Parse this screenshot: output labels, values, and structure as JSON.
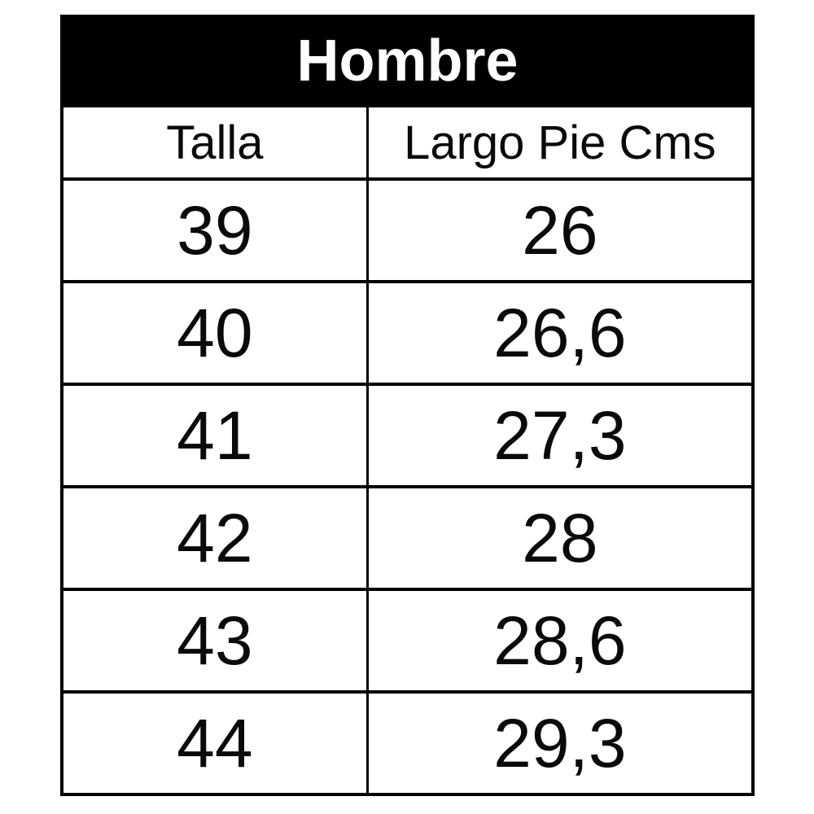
{
  "colors": {
    "title_band_bg": "#000000",
    "title_band_text": "#ffffff",
    "body_bg": "#ffffff",
    "body_text": "#0a0a0a",
    "border": "#000000"
  },
  "chart_data": {
    "type": "table",
    "title": "Hombre",
    "columns": [
      "Talla",
      "Largo Pie Cms"
    ],
    "rows": [
      [
        "39",
        "26"
      ],
      [
        "40",
        "26,6"
      ],
      [
        "41",
        "27,3"
      ],
      [
        "42",
        "28"
      ],
      [
        "43",
        "28,6"
      ],
      [
        "44",
        "29,3"
      ]
    ]
  }
}
